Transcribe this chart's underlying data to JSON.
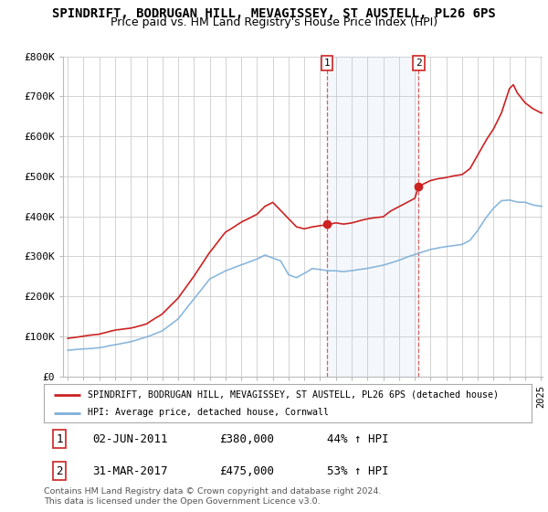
{
  "title": "SPINDRIFT, BODRUGAN HILL, MEVAGISSEY, ST AUSTELL, PL26 6PS",
  "subtitle": "Price paid vs. HM Land Registry's House Price Index (HPI)",
  "ylim": [
    0,
    800000
  ],
  "yticks": [
    0,
    100000,
    200000,
    300000,
    400000,
    500000,
    600000,
    700000,
    800000
  ],
  "ytick_labels": [
    "£0",
    "£100K",
    "£200K",
    "£300K",
    "£400K",
    "£500K",
    "£600K",
    "£700K",
    "£800K"
  ],
  "red_color": "#cc2222",
  "blue_color": "#7fb0d8",
  "transaction1_date": "02-JUN-2011",
  "transaction1_price": 380000,
  "transaction1_pct": "44%",
  "transaction1_x": 2011.42,
  "transaction2_date": "31-MAR-2017",
  "transaction2_price": 475000,
  "transaction2_pct": "53%",
  "transaction2_x": 2017.25,
  "legend_red": "SPINDRIFT, BODRUGAN HILL, MEVAGISSEY, ST AUSTELL, PL26 6PS (detached house)",
  "legend_blue": "HPI: Average price, detached house, Cornwall",
  "footer": "Contains HM Land Registry data © Crown copyright and database right 2024.\nThis data is licensed under the Open Government Licence v3.0.",
  "x_start_year": 1995,
  "x_end_year": 2025,
  "background_color": "#ffffff",
  "grid_color": "#cccccc",
  "title_fontsize": 10,
  "subtitle_fontsize": 9
}
